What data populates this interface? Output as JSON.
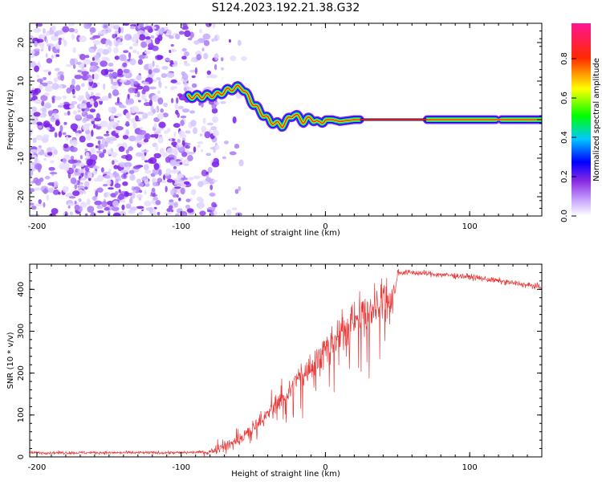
{
  "title": "S124.2023.192.21.38.G32",
  "chart_data": [
    {
      "type": "heatmap",
      "xlabel": "Height of straight line (km)",
      "ylabel": "Frequency (Hz)",
      "xlim": [
        -205,
        150
      ],
      "ylim": [
        -25,
        25
      ],
      "x_ticks": [
        -200,
        -100,
        0,
        100
      ],
      "y_ticks": [
        -20,
        -10,
        0,
        10,
        20
      ],
      "colorbar": {
        "label": "Normalized spectral amplitude",
        "range": [
          0,
          0.98
        ],
        "ticks": [
          0.0,
          0.2,
          0.4,
          0.6,
          0.8
        ],
        "colors": [
          "#ffffff",
          "#8a2be2",
          "#0000ff",
          "#00c8ff",
          "#00ff00",
          "#ffff00",
          "#ff0000",
          "#ff1493"
        ]
      },
      "noise_region_x": [
        -205,
        -75
      ],
      "doppler_track": {
        "x": [
          -95,
          -85,
          -75,
          -65,
          -58,
          -52,
          -45,
          -38,
          -30,
          -22,
          -15,
          -10,
          -5,
          0,
          5,
          10,
          20,
          30,
          50,
          80,
          100,
          120,
          150
        ],
        "freq": [
          6,
          6,
          6.5,
          8,
          8.5,
          5,
          2,
          -0.5,
          -1.5,
          1.5,
          -0.5,
          0.5,
          -1,
          0,
          0,
          -0.5,
          0,
          0,
          0,
          0,
          0,
          0,
          0
        ]
      }
    },
    {
      "type": "line",
      "xlabel": "Height of straight line (km)",
      "ylabel": "SNR (10 * v/v)",
      "xlim": [
        -205,
        150
      ],
      "ylim": [
        0,
        460
      ],
      "x_ticks": [
        -200,
        -100,
        0,
        100
      ],
      "y_ticks": [
        0,
        100,
        200,
        300,
        400
      ],
      "color": "#e83a3a",
      "trend": {
        "x": [
          -205,
          -100,
          -80,
          -60,
          -40,
          -20,
          0,
          20,
          40,
          48,
          50,
          60,
          100,
          150
        ],
        "y": [
          10,
          10,
          12,
          40,
          100,
          180,
          250,
          330,
          375,
          385,
          440,
          440,
          430,
          405
        ]
      }
    }
  ]
}
